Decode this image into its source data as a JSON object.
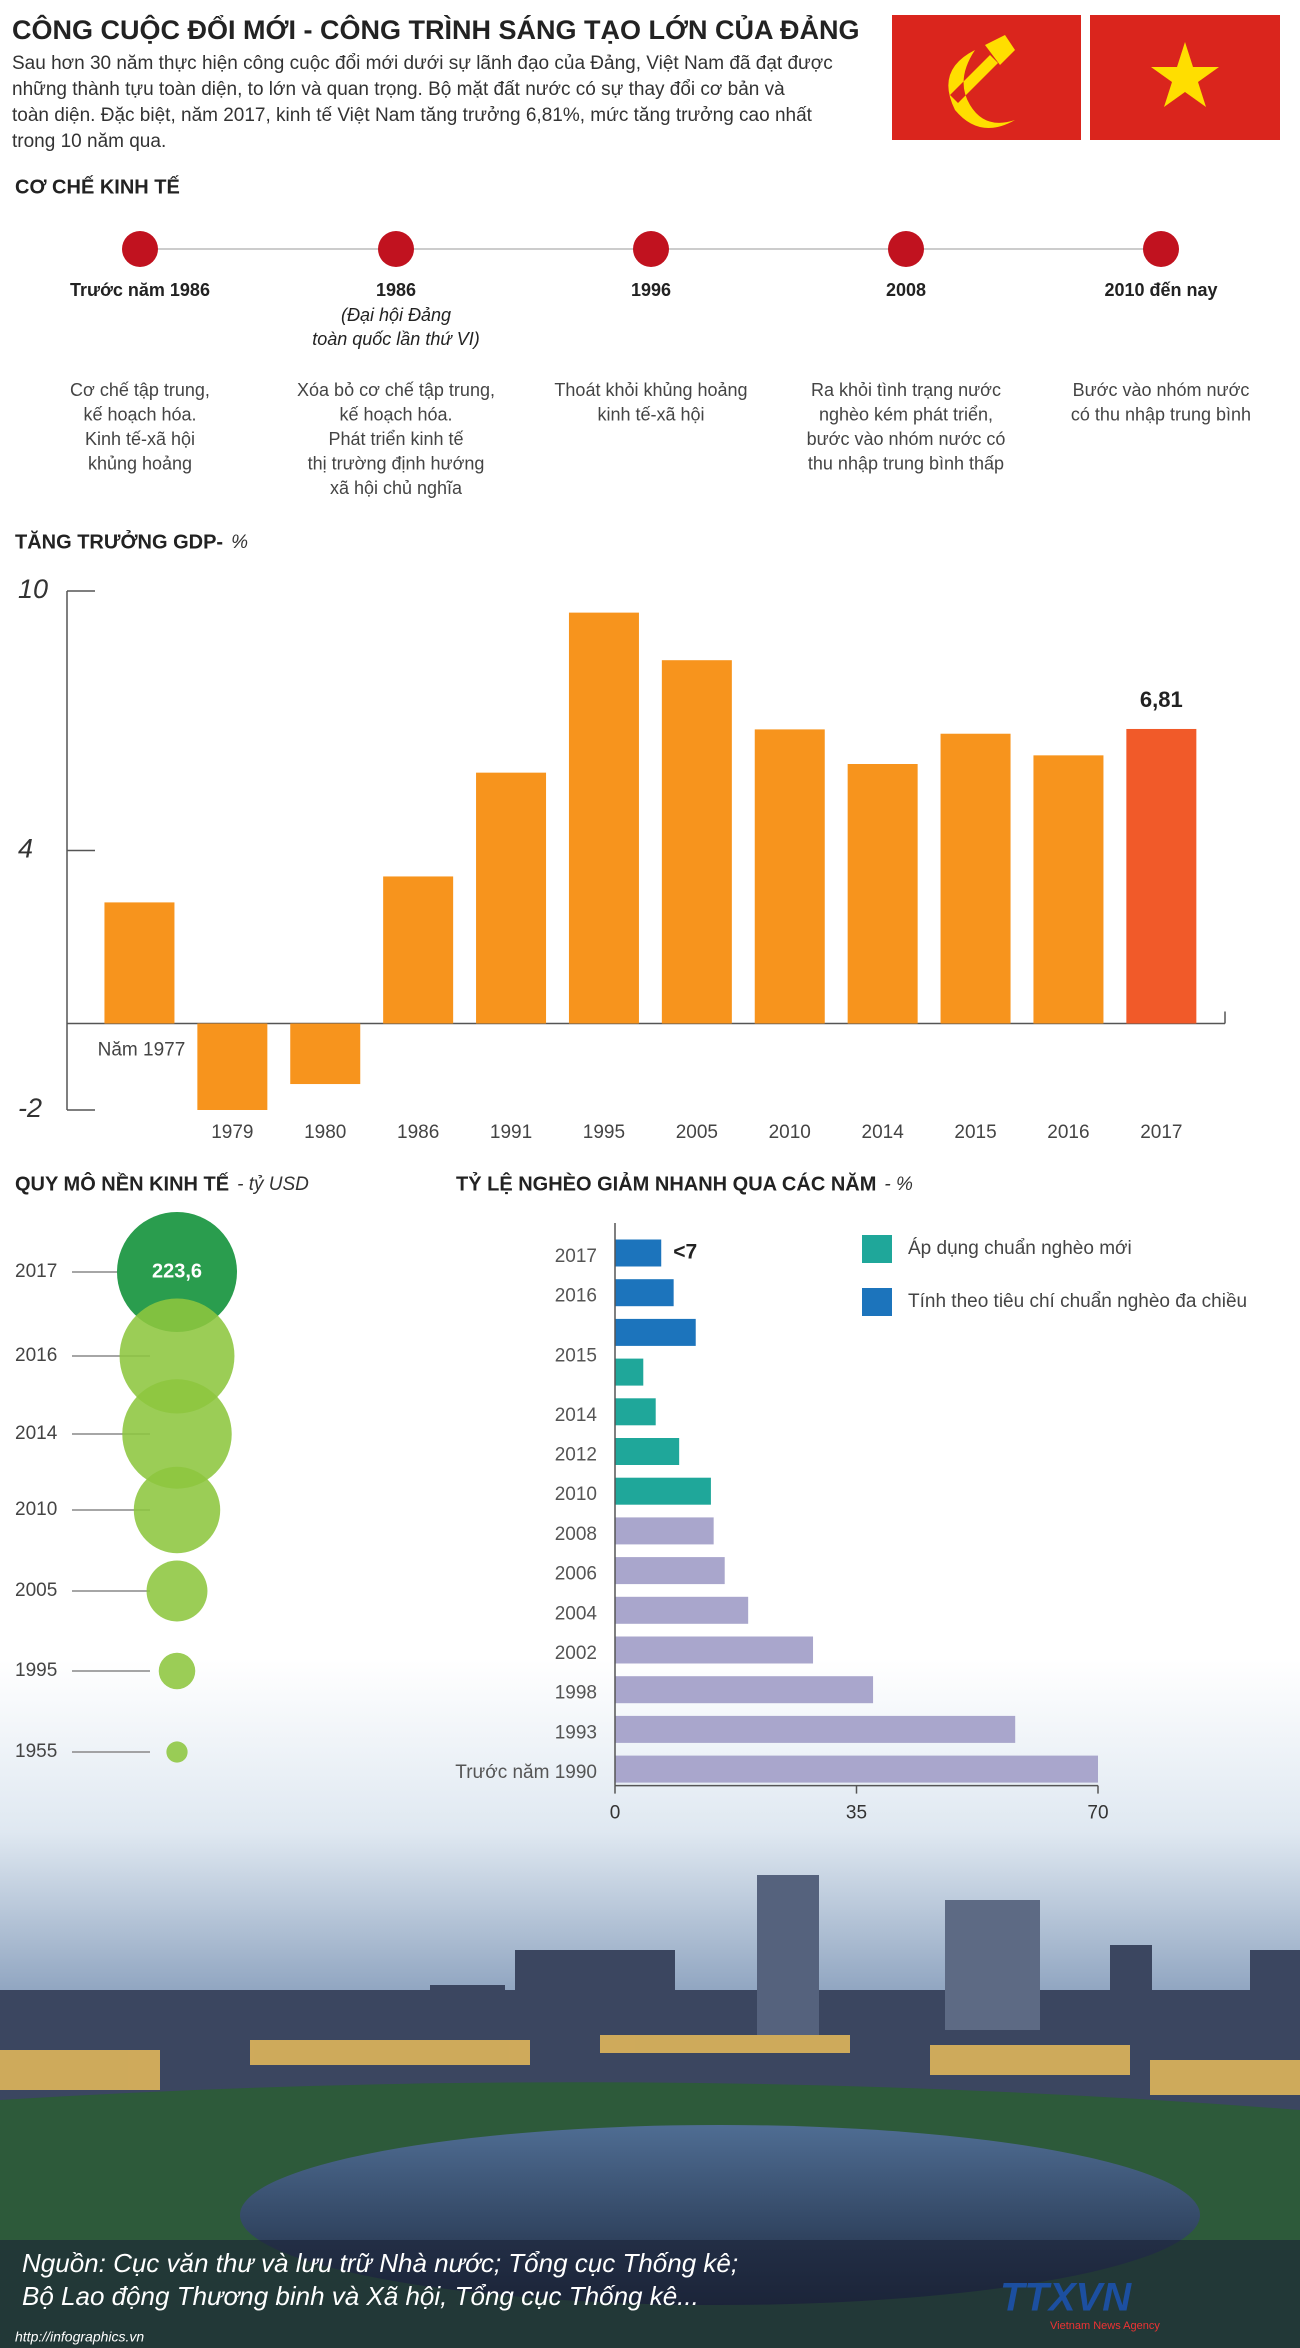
{
  "header": {
    "title": "CÔNG CUỘC ĐỔI MỚI - CÔNG TRÌNH SÁNG TẠO LỚN CỦA ĐẢNG",
    "intro": [
      "Sau hơn 30 năm thực hiện công cuộc đổi mới dưới sự lãnh đạo của Đảng, Việt Nam đã đạt được",
      "những thành tựu toàn diện, to lớn và quan trọng. Bộ mặt đất nước có sự thay đổi cơ bản và",
      "toàn diện. Đặc biệt, năm 2017, kinh tế Việt Nam tăng trưởng  6,81%, mức tăng trưởng cao nhất",
      "trong 10 năm qua."
    ]
  },
  "timeline": {
    "title": "CƠ CHẾ KINH TẾ",
    "items": [
      {
        "label": "Trước năm 1986",
        "desc": [
          "Cơ chế tập trung,",
          "kế hoạch hóa.",
          "Kinh tế-xã hội",
          "khủng hoảng"
        ]
      },
      {
        "label": "1986",
        "note": [
          "(Đại hội Đảng",
          "toàn quốc lần thứ VI)"
        ],
        "desc": [
          "Xóa bỏ cơ chế tập trung,",
          "kế hoạch hóa.",
          "Phát triển kinh tế",
          "thị trường định hướng",
          "xã hội chủ nghĩa"
        ]
      },
      {
        "label": "1996",
        "desc": [
          "Thoát khỏi khủng hoảng",
          "kinh tế-xã hội"
        ]
      },
      {
        "label": "2008",
        "desc": [
          "Ra khỏi tình trạng nước",
          "nghèo kém phát triển,",
          "bước vào nhóm nước có",
          "thu nhập trung bình thấp"
        ]
      },
      {
        "label": "2010 đến nay",
        "desc": [
          "Bước vào nhóm nước",
          "có thu nhập trung bình"
        ]
      }
    ]
  },
  "chart_data": [
    {
      "type": "bar",
      "title": "TĂNG TRƯỞNG GDP-",
      "y_label": "%",
      "categories": [
        "Năm 1977",
        "1979",
        "1980",
        "1986",
        "1991",
        "1995",
        "2005",
        "2010",
        "2014",
        "2015",
        "2016",
        "2017"
      ],
      "values": [
        2.8,
        -2.0,
        -1.4,
        3.4,
        5.8,
        9.5,
        8.4,
        6.8,
        6.0,
        6.7,
        6.2,
        6.81
      ],
      "value_labels": [
        null,
        null,
        null,
        null,
        null,
        null,
        null,
        null,
        null,
        null,
        null,
        "6,81"
      ],
      "colors": [
        "#f7941d",
        "#f7941d",
        "#f7941d",
        "#f7941d",
        "#f7941d",
        "#f7941d",
        "#f7941d",
        "#f7941d",
        "#f7941d",
        "#f7941d",
        "#f7941d",
        "#f15a29"
      ],
      "ylim": [
        -2,
        10
      ],
      "yticks": [
        10,
        4,
        -2
      ]
    },
    {
      "type": "bubble",
      "title": "QUY MÔ NỀN KINH TẾ",
      "subtitle": "- tỷ USD",
      "categories": [
        "2017",
        "2016",
        "2014",
        "2010",
        "2005",
        "1995",
        "1955"
      ],
      "values": [
        223.6,
        205,
        186,
        116,
        57.6,
        20.7,
        7
      ],
      "value_labels": [
        "223,6",
        null,
        null,
        null,
        null,
        null,
        null
      ],
      "colors": [
        "#2a9d4e",
        "#8dc63f",
        "#8dc63f",
        "#8dc63f",
        "#8dc63f",
        "#8dc63f",
        "#8dc63f"
      ]
    },
    {
      "type": "hbar",
      "title": "TỶ LỆ NGHÈO GIẢM NHANH QUA CÁC NĂM",
      "subtitle": "- %",
      "legend": "top-right",
      "categories": [
        "2017",
        "2016",
        "2015",
        "2014",
        "2012",
        "2010",
        "2008",
        "2006",
        "2004",
        "2002",
        "1998",
        "1993",
        "Trước năm 1990"
      ],
      "series": [
        {
          "name": "Tính theo tiêu chí chuẩn nghèo đa chiều",
          "color": "#1c74bc",
          "values": [
            6.7,
            8.5,
            11.7,
            null,
            null,
            null,
            null,
            null,
            null,
            null,
            null,
            null,
            null
          ],
          "value_labels": [
            "<7",
            null,
            null,
            null,
            null,
            null,
            null,
            null,
            null,
            null,
            null,
            null,
            null
          ]
        },
        {
          "name": "Áp dụng chuẩn nghèo mới",
          "color": "#1fa79a",
          "values": [
            null,
            null,
            4.1,
            5.9,
            9.3,
            13.9,
            null,
            null,
            null,
            null,
            null,
            null,
            null
          ]
        },
        {
          "color": "#a9a6cc",
          "values": [
            null,
            null,
            null,
            null,
            null,
            null,
            14.3,
            15.9,
            19.3,
            28.7,
            37.4,
            58.0,
            70
          ]
        }
      ],
      "xlim": [
        0,
        70
      ],
      "xticks": [
        0,
        35,
        70
      ]
    }
  ],
  "source": [
    "Nguồn: Cục văn thư và lưu trữ Nhà nước; Tổng cục Thống kê;",
    "Bộ Lao động Thương binh và Xã hội, Tổng cục Thống kê..."
  ],
  "website": "http://infographics.vn",
  "logo": {
    "name": "TTXVN",
    "tagline": "Vietnam News Agency"
  }
}
